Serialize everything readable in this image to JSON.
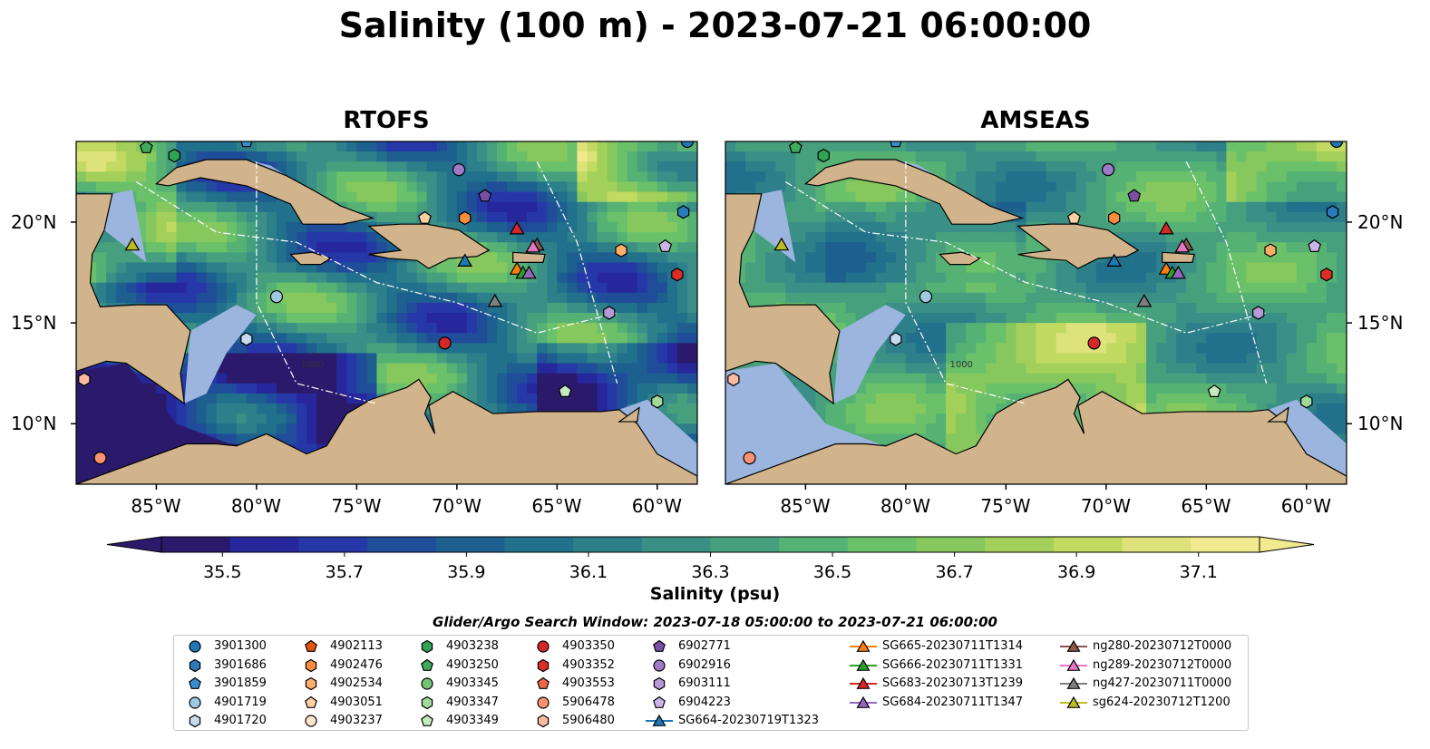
{
  "title": "Salinity (100 m) - 2023-07-21 06:00:00",
  "panels": [
    {
      "title": "RTOFS",
      "lat_labels_side": "left"
    },
    {
      "title": "AMSEAS",
      "lat_labels_side": "right"
    }
  ],
  "chart_data": {
    "type": "heatmap",
    "map_extent": {
      "lon": [
        -89,
        -58
      ],
      "lat": [
        7,
        24
      ]
    },
    "lon_ticks": [
      "85°W",
      "80°W",
      "75°W",
      "70°W",
      "65°W",
      "60°W"
    ],
    "lon_tick_values": [
      -85,
      -80,
      -75,
      -70,
      -65,
      -60
    ],
    "lat_ticks": [
      "20°N",
      "15°N",
      "10°N"
    ],
    "lat_tick_values": [
      20,
      15,
      10
    ],
    "colorbar": {
      "label": "Salinity (psu)",
      "range": [
        35.4,
        37.2
      ],
      "extend": "both",
      "tick_labels": [
        "35.5",
        "35.7",
        "35.9",
        "36.1",
        "36.3",
        "36.5",
        "36.7",
        "36.9",
        "37.1"
      ],
      "tick_values": [
        35.5,
        35.7,
        35.9,
        36.1,
        36.3,
        36.5,
        36.7,
        36.9,
        37.1
      ],
      "colors": [
        "#2b1a6b",
        "#26279a",
        "#2638a8",
        "#1f4d9a",
        "#1d5f8f",
        "#21708c",
        "#2d7f8a",
        "#3a8f86",
        "#46a07e",
        "#55b274",
        "#6ac16a",
        "#86c85e",
        "#a3d05a",
        "#c2da62",
        "#dde27a",
        "#f2ea8e"
      ]
    },
    "land_color": "#d2b48c",
    "shallow_color": "#9bb5de",
    "contour_labels": [
      "1000"
    ],
    "search_window": "Glider/Argo Search Window: 2023-07-18 05:00:00 to 2023-07-21 06:00:00",
    "argo_floats": [
      {
        "id": "3901300",
        "marker": "circle",
        "color": "#1f77b4",
        "lon": -58.5,
        "lat": 24.0
      },
      {
        "id": "3901686",
        "marker": "hexagon",
        "color": "#2b7bba",
        "lon": -58.7,
        "lat": 20.5
      },
      {
        "id": "3901859",
        "marker": "pentagon",
        "color": "#3a8ccd",
        "lon": -80.5,
        "lat": 24.0
      },
      {
        "id": "4901719",
        "marker": "circle",
        "color": "#9ecae1",
        "lon": -79.0,
        "lat": 16.3
      },
      {
        "id": "4901720",
        "marker": "hexagon",
        "color": "#c6dbef",
        "lon": -80.5,
        "lat": 14.2
      },
      {
        "id": "4902113",
        "marker": "pentagon",
        "color": "#e6550d",
        "lon": -57.5,
        "lat": 24.0
      },
      {
        "id": "4902476",
        "marker": "hexagon",
        "color": "#fd8d3c",
        "lon": -69.6,
        "lat": 20.2
      },
      {
        "id": "4902534",
        "marker": "hexagon",
        "color": "#fdae6b",
        "lon": -61.8,
        "lat": 18.6
      },
      {
        "id": "4903051",
        "marker": "pentagon",
        "color": "#fdd0a2",
        "lon": -71.6,
        "lat": 20.2
      },
      {
        "id": "4903237",
        "marker": "circle",
        "color": "#fee6ce",
        "lon": -57.2,
        "lat": 23.6
      },
      {
        "id": "4903238",
        "marker": "hexagon",
        "color": "#31a354",
        "lon": -84.1,
        "lat": 23.3
      },
      {
        "id": "4903250",
        "marker": "pentagon",
        "color": "#41ab5d",
        "lon": -85.5,
        "lat": 23.7
      },
      {
        "id": "4903345",
        "marker": "circle",
        "color": "#74c476",
        "lon": -57.5,
        "lat": 22.5
      },
      {
        "id": "4903347",
        "marker": "hexagon",
        "color": "#a1d99b",
        "lon": -60.0,
        "lat": 11.1
      },
      {
        "id": "4903349",
        "marker": "pentagon",
        "color": "#c7e9c0",
        "lon": -64.6,
        "lat": 11.6
      },
      {
        "id": "4903350",
        "marker": "circle",
        "color": "#d62728",
        "lon": -70.6,
        "lat": 14.0
      },
      {
        "id": "4903352",
        "marker": "hexagon",
        "color": "#de2d26",
        "lon": -59.0,
        "lat": 17.4
      },
      {
        "id": "4903553",
        "marker": "pentagon",
        "color": "#ef6548",
        "lon": -57.5,
        "lat": 22.0
      },
      {
        "id": "5906478",
        "marker": "circle",
        "color": "#fc9272",
        "lon": -87.8,
        "lat": 8.3
      },
      {
        "id": "5906480",
        "marker": "hexagon",
        "color": "#fcbba1",
        "lon": -88.6,
        "lat": 12.2
      },
      {
        "id": "6902771",
        "marker": "pentagon",
        "color": "#7b4fa6",
        "lon": -68.6,
        "lat": 21.3
      },
      {
        "id": "6902916",
        "marker": "circle",
        "color": "#9e7bc7",
        "lon": -69.9,
        "lat": 22.6
      },
      {
        "id": "6903111",
        "marker": "hexagon",
        "color": "#b799d6",
        "lon": -62.4,
        "lat": 15.5
      },
      {
        "id": "6904223",
        "marker": "pentagon",
        "color": "#cdb4e6",
        "lon": -59.6,
        "lat": 18.8
      }
    ],
    "gliders": [
      {
        "id": "SG664-20230719T1323",
        "marker": "triangle",
        "color": "#1f77b4",
        "lon": -69.6,
        "lat": 18.1
      },
      {
        "id": "SG665-20230711T1314",
        "marker": "triangle",
        "color": "#ff7f0e",
        "lon": -67.0,
        "lat": 17.7
      },
      {
        "id": "SG666-20230711T1331",
        "marker": "triangle",
        "color": "#2ca02c",
        "lon": -66.7,
        "lat": 17.5
      },
      {
        "id": "SG683-20230713T1239",
        "marker": "triangle",
        "color": "#d62728",
        "lon": -67.0,
        "lat": 19.7
      },
      {
        "id": "SG684-20230711T1347",
        "marker": "triangle",
        "color": "#9467bd",
        "lon": -66.4,
        "lat": 17.5
      },
      {
        "id": "ng280-20230712T0000",
        "marker": "triangle",
        "color": "#8c564b",
        "lon": -66.0,
        "lat": 18.9
      },
      {
        "id": "ng289-20230712T0000",
        "marker": "triangle",
        "color": "#e377c2",
        "lon": -66.2,
        "lat": 18.8
      },
      {
        "id": "ng427-20230711T0000",
        "marker": "triangle",
        "color": "#7f7f7f",
        "lon": -68.1,
        "lat": 16.1
      },
      {
        "id": "sg624-20230712T1200",
        "marker": "triangle",
        "color": "#bcbd22",
        "lon": -86.2,
        "lat": 18.9
      }
    ]
  }
}
